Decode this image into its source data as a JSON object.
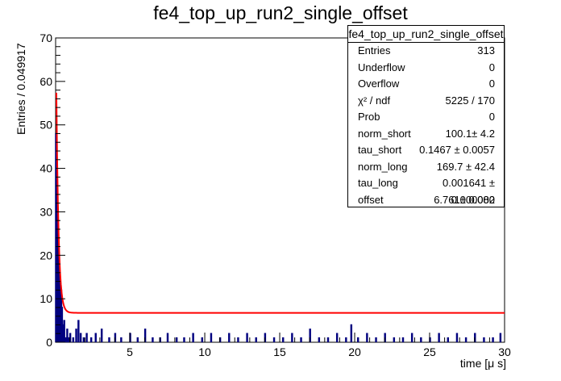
{
  "chart_data": {
    "type": "histogram",
    "title": "fe4_top_up_run2_single_offset",
    "xlabel": "time [μ s]",
    "ylabel": "Entries / 0.049917",
    "xlim": [
      0.05,
      30
    ],
    "ylim": [
      0,
      70
    ],
    "x_ticks": [
      5,
      10,
      15,
      20,
      25,
      30
    ],
    "y_ticks": [
      0,
      10,
      20,
      30,
      40,
      50,
      60,
      70
    ],
    "histogram_color": "#00007f",
    "fit_color": "#ff0000",
    "bin_width": 0.049917,
    "bins": [
      {
        "x": 0.05,
        "y": 48
      },
      {
        "x": 0.1,
        "y": 40
      },
      {
        "x": 0.15,
        "y": 28
      },
      {
        "x": 0.2,
        "y": 26
      },
      {
        "x": 0.25,
        "y": 18
      },
      {
        "x": 0.3,
        "y": 15
      },
      {
        "x": 0.35,
        "y": 9
      },
      {
        "x": 0.4,
        "y": 12
      },
      {
        "x": 0.45,
        "y": 8
      },
      {
        "x": 0.5,
        "y": 4
      },
      {
        "x": 0.55,
        "y": 2
      },
      {
        "x": 0.6,
        "y": 5
      },
      {
        "x": 0.7,
        "y": 1
      },
      {
        "x": 0.8,
        "y": 3
      },
      {
        "x": 0.9,
        "y": 1
      },
      {
        "x": 1.0,
        "y": 2
      },
      {
        "x": 1.2,
        "y": 1
      },
      {
        "x": 1.4,
        "y": 3
      },
      {
        "x": 1.55,
        "y": 5
      },
      {
        "x": 1.7,
        "y": 2
      },
      {
        "x": 1.9,
        "y": 1
      },
      {
        "x": 2.1,
        "y": 2
      },
      {
        "x": 2.4,
        "y": 1
      },
      {
        "x": 2.7,
        "y": 2
      },
      {
        "x": 3.1,
        "y": 3
      },
      {
        "x": 3.6,
        "y": 1
      },
      {
        "x": 4.0,
        "y": 2
      },
      {
        "x": 4.4,
        "y": 1
      },
      {
        "x": 5.0,
        "y": 2
      },
      {
        "x": 5.5,
        "y": 1
      },
      {
        "x": 6.0,
        "y": 3
      },
      {
        "x": 6.5,
        "y": 1
      },
      {
        "x": 7.0,
        "y": 1
      },
      {
        "x": 7.5,
        "y": 2
      },
      {
        "x": 8.1,
        "y": 1
      },
      {
        "x": 8.6,
        "y": 1
      },
      {
        "x": 9.2,
        "y": 2
      },
      {
        "x": 9.8,
        "y": 1
      },
      {
        "x": 10.4,
        "y": 2
      },
      {
        "x": 11.0,
        "y": 1
      },
      {
        "x": 11.6,
        "y": 2
      },
      {
        "x": 12.2,
        "y": 1
      },
      {
        "x": 12.8,
        "y": 2
      },
      {
        "x": 13.4,
        "y": 1
      },
      {
        "x": 14.0,
        "y": 2
      },
      {
        "x": 14.6,
        "y": 1
      },
      {
        "x": 15.2,
        "y": 1
      },
      {
        "x": 15.8,
        "y": 2
      },
      {
        "x": 16.4,
        "y": 1
      },
      {
        "x": 17.0,
        "y": 3
      },
      {
        "x": 17.6,
        "y": 1
      },
      {
        "x": 18.2,
        "y": 1
      },
      {
        "x": 18.8,
        "y": 2
      },
      {
        "x": 19.4,
        "y": 1
      },
      {
        "x": 19.75,
        "y": 4
      },
      {
        "x": 20.2,
        "y": 1
      },
      {
        "x": 20.8,
        "y": 2
      },
      {
        "x": 21.4,
        "y": 1
      },
      {
        "x": 22.0,
        "y": 2
      },
      {
        "x": 22.6,
        "y": 1
      },
      {
        "x": 23.2,
        "y": 1
      },
      {
        "x": 23.8,
        "y": 2
      },
      {
        "x": 24.4,
        "y": 1
      },
      {
        "x": 25.0,
        "y": 1
      },
      {
        "x": 25.6,
        "y": 2
      },
      {
        "x": 26.2,
        "y": 1
      },
      {
        "x": 26.8,
        "y": 2
      },
      {
        "x": 27.4,
        "y": 1
      },
      {
        "x": 28.0,
        "y": 2
      },
      {
        "x": 28.6,
        "y": 1
      },
      {
        "x": 29.2,
        "y": 1
      },
      {
        "x": 29.7,
        "y": 2
      }
    ],
    "fit": {
      "name": "offset fit",
      "norm_short": 100.1,
      "tau_short": 0.1467,
      "norm_long": 169.7,
      "tau_long": 0.001641,
      "offset": 6.761
    }
  },
  "stats_box": {
    "title": "fe4_top_up_run2_single_offset",
    "rows": [
      {
        "label": "Entries",
        "value": "313"
      },
      {
        "label": "Underflow",
        "value": "0"
      },
      {
        "label": "Overflow",
        "value": "0"
      },
      {
        "label": "χ² / ndf",
        "value": "5225 / 170"
      },
      {
        "label": "Prob",
        "value": "0"
      },
      {
        "label": "norm_short",
        "value": "100.1± 4.2"
      },
      {
        "label": "tau_short",
        "value": "0.1467 ± 0.0057"
      },
      {
        "label": "norm_long",
        "value": "169.7 ± 42.4"
      },
      {
        "label": "tau_long",
        "value": "0.001641 ± 0.000000"
      },
      {
        "label": "offset",
        "value": "6.761± 0.082"
      }
    ]
  }
}
